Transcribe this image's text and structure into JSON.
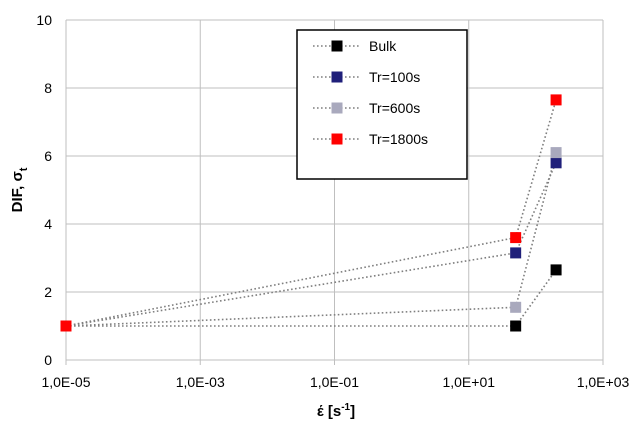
{
  "chart_data": {
    "type": "scatter",
    "x_scale": "log",
    "xlim": [
      1e-05,
      1000
    ],
    "ylim": [
      0,
      10
    ],
    "grid": true,
    "legend_position": "top-right",
    "xlabel_main": "έ [s",
    "xlabel_sup": "-1",
    "xlabel_end": "]",
    "ylabel_main": "DIF, σ",
    "ylabel_sub": "t",
    "x_ticks": [
      {
        "value": 1e-05,
        "label": "1,0E-05"
      },
      {
        "value": 0.001,
        "label": "1,0E-03"
      },
      {
        "value": 0.1,
        "label": "1,0E-01"
      },
      {
        "value": 10,
        "label": "1,0E+01"
      },
      {
        "value": 1000,
        "label": "1,0E+03"
      }
    ],
    "y_ticks": [
      {
        "value": 0,
        "label": "0"
      },
      {
        "value": 2,
        "label": "2"
      },
      {
        "value": 4,
        "label": "4"
      },
      {
        "value": 6,
        "label": "6"
      },
      {
        "value": 8,
        "label": "8"
      },
      {
        "value": 10,
        "label": "10"
      }
    ],
    "series": [
      {
        "name": "Bulk",
        "color": "#000000",
        "points": [
          [
            1e-05,
            1.0
          ],
          [
            50,
            1.0
          ],
          [
            200,
            2.65
          ]
        ]
      },
      {
        "name": "Tr=100s",
        "color": "#1f1f7a",
        "points": [
          [
            1e-05,
            1.0
          ],
          [
            50,
            3.15
          ],
          [
            200,
            5.8
          ]
        ]
      },
      {
        "name": "Tr=600s",
        "color": "#a9a9bd",
        "points": [
          [
            1e-05,
            1.0
          ],
          [
            50,
            1.55
          ],
          [
            200,
            6.1
          ]
        ]
      },
      {
        "name": "Tr=1800s",
        "color": "#ff0000",
        "points": [
          [
            1e-05,
            1.0
          ],
          [
            50,
            3.6
          ],
          [
            200,
            7.65
          ]
        ]
      }
    ]
  }
}
